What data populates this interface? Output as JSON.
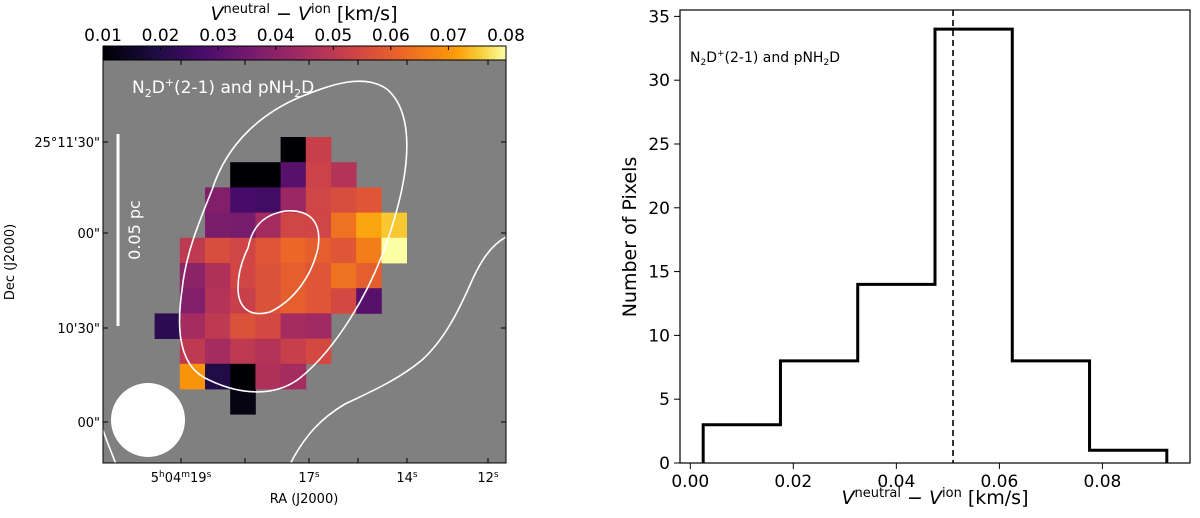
{
  "chart_data": [
    {
      "type": "heatmap",
      "title": "",
      "annotation": {
        "main": "N",
        "sub": "2",
        "mid": "D",
        "sup": "+",
        "rest": "(2-1) and pNH",
        "sub2": "2",
        "tail": "D"
      },
      "colorbar": {
        "label": {
          "v": "V",
          "sup1": "neutral",
          "minus": " − ",
          "v2": "V",
          "sup2": "ion",
          "unit": " [km/s]"
        },
        "range": [
          0.01,
          0.08
        ],
        "ticks": [
          "0.01",
          "0.02",
          "0.03",
          "0.04",
          "0.05",
          "0.06",
          "0.07",
          "0.08"
        ],
        "colormap": "inferno"
      },
      "xlabel": "RA (J2000)",
      "ylabel": "Dec (J2000)",
      "xticks": [
        {
          "h": "5",
          "hs": "h",
          "m": "04",
          "ms": "m",
          "s": "19",
          "ss": "s"
        },
        {
          "h": "",
          "hs": "",
          "m": "",
          "ms": "",
          "s": "17",
          "ss": "s"
        },
        {
          "h": "",
          "hs": "",
          "m": "",
          "ms": "",
          "s": "14",
          "ss": "s"
        },
        {
          "h": "",
          "hs": "",
          "m": "",
          "ms": "",
          "s": "12",
          "ss": "s"
        }
      ],
      "yticks": [
        "25°11'30\"",
        "00\"",
        "10'30\"",
        "00\""
      ],
      "scalebar_label": "0.05 pc",
      "background_color": "#808080",
      "grid": {
        "cols": 9,
        "rows": 11
      },
      "pixels": [
        [
          0,
          3,
          0.01
        ],
        [
          0,
          4,
          0.052
        ],
        [
          1,
          1,
          0.01
        ],
        [
          1,
          2,
          0.01
        ],
        [
          1,
          3,
          0.03
        ],
        [
          1,
          4,
          0.053
        ],
        [
          1,
          5,
          0.048
        ],
        [
          2,
          0,
          0.038
        ],
        [
          2,
          1,
          0.027
        ],
        [
          2,
          2,
          0.026
        ],
        [
          2,
          3,
          0.043
        ],
        [
          2,
          4,
          0.054
        ],
        [
          2,
          5,
          0.056
        ],
        [
          2,
          6,
          0.058
        ],
        [
          3,
          0,
          0.037
        ],
        [
          3,
          1,
          0.036
        ],
        [
          3,
          2,
          0.045
        ],
        [
          3,
          3,
          0.054
        ],
        [
          3,
          4,
          0.054
        ],
        [
          3,
          5,
          0.064
        ],
        [
          3,
          6,
          0.072
        ],
        [
          3,
          7,
          0.075
        ],
        [
          4,
          -1,
          0.05
        ],
        [
          4,
          0,
          0.056
        ],
        [
          4,
          1,
          0.054
        ],
        [
          4,
          2,
          0.058
        ],
        [
          4,
          3,
          0.062
        ],
        [
          4,
          4,
          0.06
        ],
        [
          4,
          5,
          0.058
        ],
        [
          4,
          6,
          0.066
        ],
        [
          4,
          7,
          0.08
        ],
        [
          5,
          -1,
          0.04
        ],
        [
          5,
          0,
          0.047
        ],
        [
          5,
          1,
          0.054
        ],
        [
          5,
          2,
          0.057
        ],
        [
          5,
          3,
          0.06
        ],
        [
          5,
          4,
          0.058
        ],
        [
          5,
          5,
          0.064
        ],
        [
          5,
          6,
          0.06
        ],
        [
          6,
          -1,
          0.038
        ],
        [
          6,
          0,
          0.048
        ],
        [
          6,
          1,
          0.052
        ],
        [
          6,
          2,
          0.057
        ],
        [
          6,
          3,
          0.06
        ],
        [
          6,
          4,
          0.058
        ],
        [
          6,
          5,
          0.055
        ],
        [
          6,
          6,
          0.03
        ],
        [
          7,
          -2,
          0.022
        ],
        [
          7,
          -1,
          0.045
        ],
        [
          7,
          0,
          0.05
        ],
        [
          7,
          1,
          0.057
        ],
        [
          7,
          2,
          0.055
        ],
        [
          7,
          3,
          0.045
        ],
        [
          7,
          4,
          0.044
        ],
        [
          8,
          -1,
          0.05
        ],
        [
          8,
          0,
          0.045
        ],
        [
          8,
          1,
          0.05
        ],
        [
          8,
          2,
          0.048
        ],
        [
          8,
          3,
          0.052
        ],
        [
          8,
          4,
          0.055
        ],
        [
          9,
          -1,
          0.07
        ],
        [
          9,
          0,
          0.02
        ],
        [
          9,
          1,
          0.01
        ],
        [
          9,
          2,
          0.047
        ],
        [
          9,
          3,
          0.045
        ],
        [
          10,
          1,
          0.012
        ]
      ]
    },
    {
      "type": "histogram",
      "title": "",
      "annotation": {
        "main": "N",
        "sub": "2",
        "mid": "D",
        "sup": "+",
        "rest": "(2-1) and pNH",
        "sub2": "2",
        "tail": "D"
      },
      "xlabel": {
        "v": "V",
        "sup1": "neutral",
        "minus": " − ",
        "v2": "V",
        "sup2": "ion",
        "unit": " [km/s]"
      },
      "ylabel": "Number of Pixels",
      "xlim": [
        -0.002,
        0.097
      ],
      "ylim": [
        0,
        35.5
      ],
      "xticks": [
        0.0,
        0.02,
        0.04,
        0.06,
        0.08
      ],
      "xtick_labels": [
        "0.00",
        "0.02",
        "0.04",
        "0.06",
        "0.08"
      ],
      "yticks": [
        0,
        5,
        10,
        15,
        20,
        25,
        30,
        35
      ],
      "ytick_labels": [
        "0",
        "5",
        "10",
        "15",
        "20",
        "25",
        "30",
        "35"
      ],
      "bin_edges": [
        0.0025,
        0.0175,
        0.0325,
        0.0475,
        0.0625,
        0.0775,
        0.0925
      ],
      "counts": [
        3,
        8,
        14,
        34,
        8,
        1
      ],
      "median_line": 0.051
    }
  ]
}
